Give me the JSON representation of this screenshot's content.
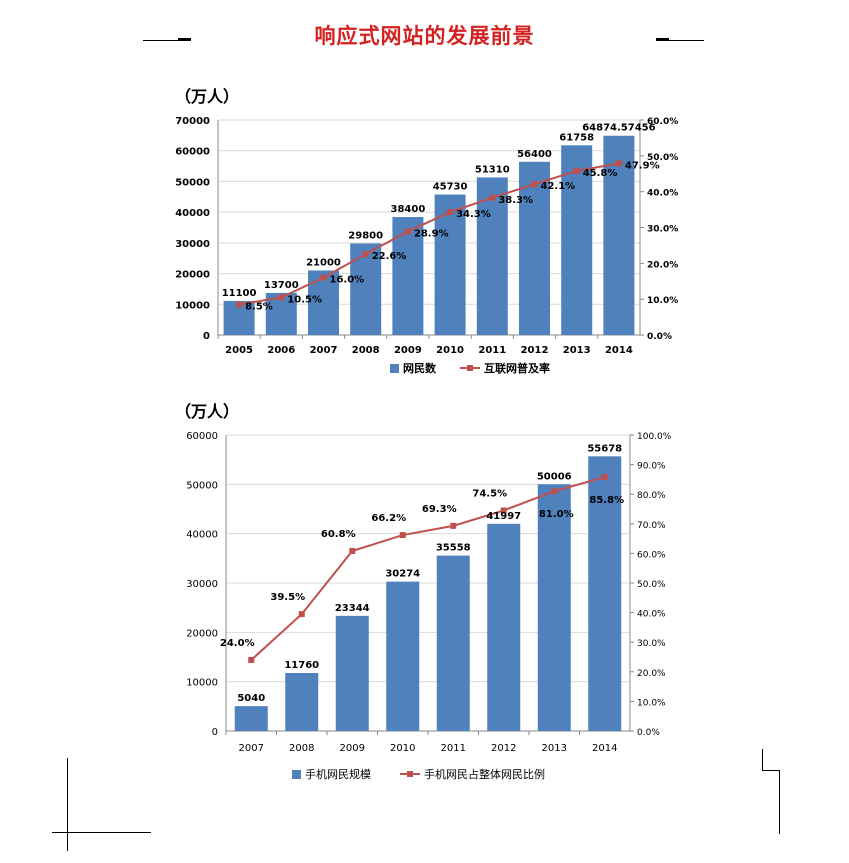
{
  "page": {
    "title": "响应式网站的发展前景"
  },
  "colors": {
    "title": "#d42222",
    "bar": "#4f81bd",
    "line": "#c0504d",
    "grid": "#d9d9d9"
  },
  "chart_data": [
    {
      "type": "bar",
      "unit_label": "（万人）",
      "categories": [
        "2005",
        "2006",
        "2007",
        "2008",
        "2009",
        "2010",
        "2011",
        "2012",
        "2013",
        "2014"
      ],
      "series": [
        {
          "name": "网民数",
          "type": "bar",
          "axis": "left",
          "values": [
            11100,
            13700,
            21000,
            29800,
            38400,
            45730,
            51310,
            56400,
            61758,
            64874.57456
          ],
          "labels": [
            "11100",
            "13700",
            "21000",
            "29800",
            "38400",
            "45730",
            "51310",
            "56400",
            "61758",
            "64874.57456"
          ]
        },
        {
          "name": "互联网普及率",
          "type": "line",
          "axis": "right",
          "values": [
            8.5,
            10.5,
            16.0,
            22.6,
            28.9,
            34.3,
            38.3,
            42.1,
            45.8,
            47.9
          ],
          "labels": [
            "8.5%",
            "10.5%",
            "16.0%",
            "22.6%",
            "28.9%",
            "34.3%",
            "38.3%",
            "42.1%",
            "45.8%",
            "47.9%"
          ]
        }
      ],
      "ylim": [
        0,
        70000
      ],
      "yticks": [
        "0",
        "10000",
        "20000",
        "30000",
        "40000",
        "50000",
        "60000",
        "70000"
      ],
      "y2lim": [
        0,
        60
      ],
      "y2ticks": [
        "0.0%",
        "10.0%",
        "20.0%",
        "30.0%",
        "40.0%",
        "50.0%",
        "60.0%"
      ],
      "legend": "bottom",
      "grid": true
    },
    {
      "type": "bar",
      "unit_label": "（万人）",
      "categories": [
        "2007",
        "2008",
        "2009",
        "2010",
        "2011",
        "2012",
        "2013",
        "2014"
      ],
      "series": [
        {
          "name": "手机网民规模",
          "type": "bar",
          "axis": "left",
          "values": [
            5040,
            11760,
            23344,
            30274,
            35558,
            41997,
            50006,
            55678
          ],
          "labels": [
            "5040",
            "11760",
            "23344",
            "30274",
            "35558",
            "41997",
            "50006",
            "55678"
          ]
        },
        {
          "name": "手机网民占整体网民比例",
          "type": "line",
          "axis": "right",
          "values": [
            24.0,
            39.5,
            60.8,
            66.2,
            69.3,
            74.5,
            81.0,
            85.8
          ],
          "labels": [
            "24.0%",
            "39.5%",
            "60.8%",
            "66.2%",
            "69.3%",
            "74.5%",
            "81.0%",
            "85.8%"
          ]
        }
      ],
      "ylim": [
        0,
        60000
      ],
      "yticks": [
        "0",
        "10000",
        "20000",
        "30000",
        "40000",
        "50000",
        "60000"
      ],
      "y2lim": [
        0,
        100
      ],
      "y2ticks": [
        "0.0%",
        "10.0%",
        "20.0%",
        "30.0%",
        "40.0%",
        "50.0%",
        "60.0%",
        "70.0%",
        "80.0%",
        "90.0%",
        "100.0%"
      ],
      "legend": "bottom",
      "grid": true
    }
  ]
}
